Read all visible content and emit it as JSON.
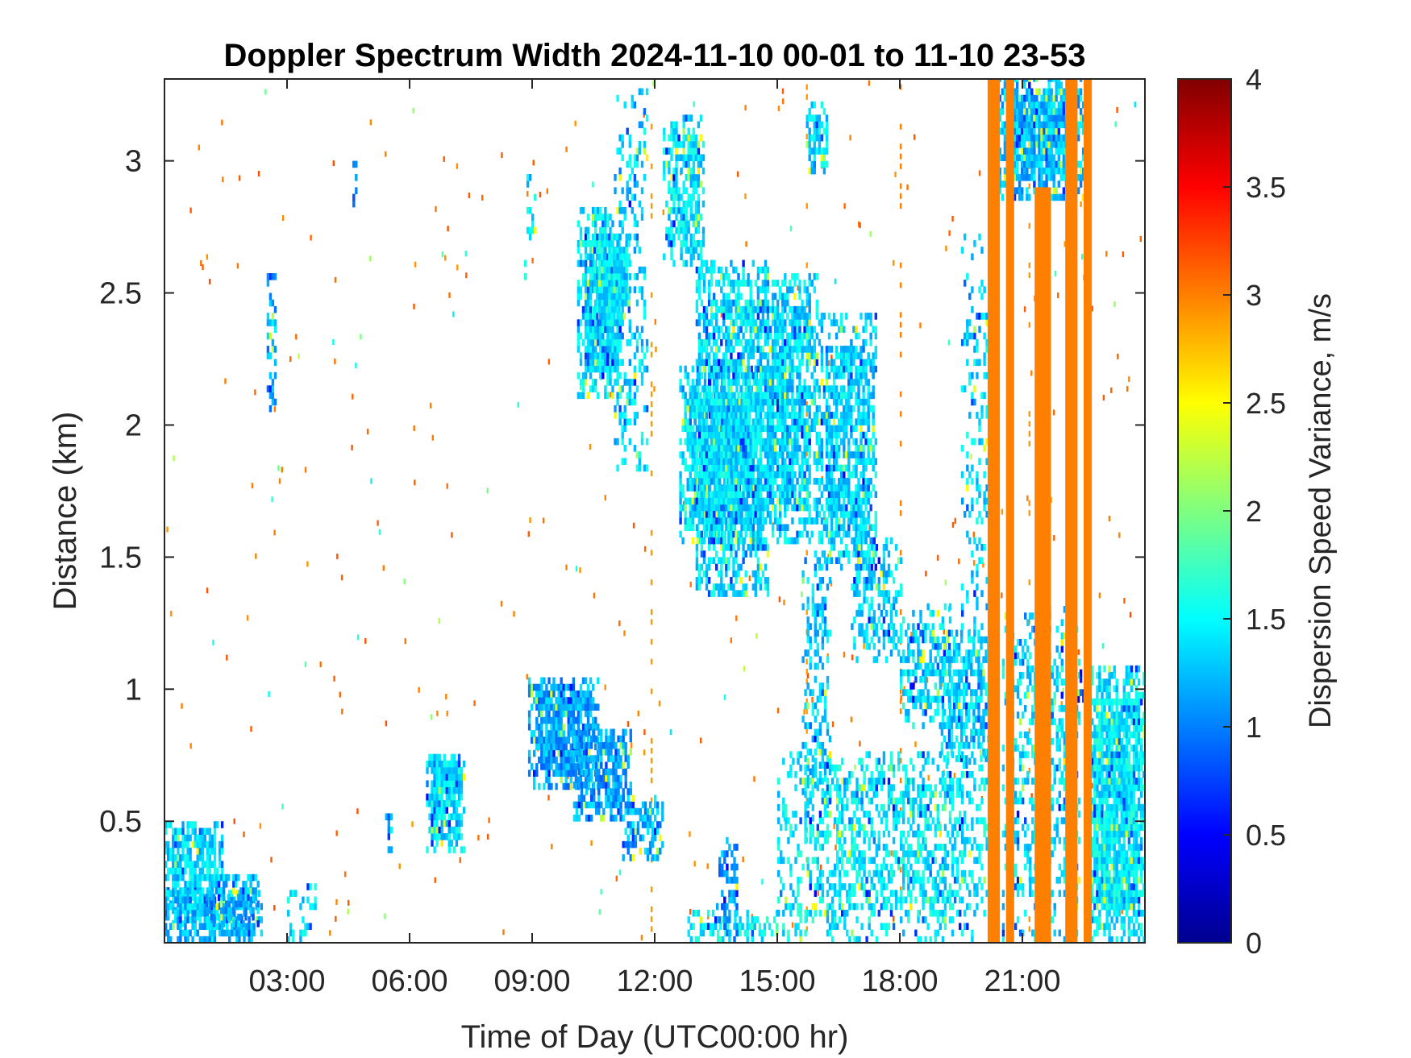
{
  "chart_data": {
    "type": "heatmap",
    "title": "Doppler Spectrum Width 2024-11-10 00-01 to 11-10 23-53",
    "xlabel": "Time of Day (UTC00:00 hr)",
    "ylabel": "Distance (km)",
    "xlim": [
      0.0,
      24.0
    ],
    "ylim": [
      0.04,
      3.31
    ],
    "x_tick_values": [
      3,
      6,
      9,
      12,
      15,
      18,
      21
    ],
    "x_tick_labels": [
      "03:00",
      "06:00",
      "09:00",
      "12:00",
      "15:00",
      "18:00",
      "21:00"
    ],
    "y_tick_values": [
      0.5,
      1,
      1.5,
      2,
      2.5,
      3
    ],
    "y_tick_labels": [
      "0.5",
      "1",
      "1.5",
      "2",
      "2.5",
      "3"
    ],
    "colorbar": {
      "label": "Dispersion Speed Variance, m/s",
      "colormap": "jet",
      "range": [
        0,
        4
      ],
      "tick_values": [
        0,
        0.5,
        1,
        1.5,
        2,
        2.5,
        3,
        3.5,
        4
      ],
      "tick_labels": [
        "0",
        "0.5",
        "1",
        "1.5",
        "2",
        "2.5",
        "3",
        "3.5",
        "4"
      ]
    },
    "grid": false,
    "background_color": "#ffffff",
    "regions": [
      {
        "t0": 0.0,
        "t1": 1.4,
        "h0": 0.1,
        "h1": 0.5,
        "value": 1.35,
        "density": 0.85
      },
      {
        "t0": 0.0,
        "t1": 2.4,
        "h0": 0.04,
        "h1": 0.22,
        "value": 1.25,
        "density": 0.7
      },
      {
        "t0": 1.0,
        "t1": 2.3,
        "h0": 0.1,
        "h1": 0.3,
        "value": 1.2,
        "density": 0.6
      },
      {
        "t0": 3.0,
        "t1": 3.7,
        "h0": 0.04,
        "h1": 0.25,
        "value": 1.4,
        "density": 0.35
      },
      {
        "t0": 2.5,
        "t1": 2.7,
        "h0": 2.05,
        "h1": 2.55,
        "value": 1.2,
        "density": 0.55
      },
      {
        "t0": 4.6,
        "t1": 4.7,
        "h0": 2.8,
        "h1": 3.0,
        "value": 1.0,
        "density": 0.7
      },
      {
        "t0": 6.4,
        "t1": 7.3,
        "h0": 0.38,
        "h1": 0.75,
        "value": 1.4,
        "density": 0.9
      },
      {
        "t0": 5.4,
        "t1": 5.6,
        "h0": 0.38,
        "h1": 0.55,
        "value": 1.3,
        "density": 0.5
      },
      {
        "t0": 8.8,
        "t1": 9.1,
        "h0": 2.55,
        "h1": 2.95,
        "value": 1.4,
        "density": 0.35
      },
      {
        "t0": 8.9,
        "t1": 10.6,
        "h0": 0.62,
        "h1": 1.03,
        "value": 1.15,
        "density": 0.85
      },
      {
        "t0": 10.0,
        "t1": 11.4,
        "h0": 0.5,
        "h1": 0.85,
        "value": 1.15,
        "density": 0.75
      },
      {
        "t0": 11.2,
        "t1": 12.2,
        "h0": 0.35,
        "h1": 0.6,
        "value": 1.2,
        "density": 0.6
      },
      {
        "t0": 10.1,
        "t1": 11.2,
        "h0": 2.1,
        "h1": 2.8,
        "value": 1.4,
        "density": 0.9
      },
      {
        "t0": 10.5,
        "t1": 11.4,
        "h0": 2.4,
        "h1": 2.7,
        "value": 1.45,
        "density": 0.95
      },
      {
        "t0": 11.0,
        "t1": 11.8,
        "h0": 1.8,
        "h1": 3.25,
        "value": 1.35,
        "density": 0.3
      },
      {
        "t0": 12.2,
        "t1": 13.2,
        "h0": 2.6,
        "h1": 3.15,
        "value": 1.4,
        "density": 0.7
      },
      {
        "t0": 12.6,
        "t1": 14.5,
        "h0": 1.55,
        "h1": 2.2,
        "value": 1.4,
        "density": 0.85
      },
      {
        "t0": 13.0,
        "t1": 14.8,
        "h0": 1.35,
        "h1": 2.6,
        "value": 1.4,
        "density": 0.75
      },
      {
        "t0": 14.5,
        "t1": 16.0,
        "h0": 1.55,
        "h1": 2.55,
        "value": 1.35,
        "density": 0.8
      },
      {
        "t0": 15.7,
        "t1": 16.2,
        "h0": 2.95,
        "h1": 3.2,
        "value": 1.4,
        "density": 0.75
      },
      {
        "t0": 16.0,
        "t1": 17.4,
        "h0": 1.45,
        "h1": 2.4,
        "value": 1.35,
        "density": 0.7
      },
      {
        "t0": 16.8,
        "t1": 18.0,
        "h0": 1.1,
        "h1": 1.55,
        "value": 1.35,
        "density": 0.5
      },
      {
        "t0": 15.6,
        "t1": 16.3,
        "h0": 0.5,
        "h1": 1.5,
        "value": 1.3,
        "density": 0.4
      },
      {
        "t0": 18.0,
        "t1": 19.2,
        "h0": 0.85,
        "h1": 1.3,
        "value": 1.4,
        "density": 0.55
      },
      {
        "t0": 19.0,
        "t1": 20.2,
        "h0": 0.7,
        "h1": 1.2,
        "value": 1.35,
        "density": 0.7
      },
      {
        "t0": 19.5,
        "t1": 20.2,
        "h0": 1.2,
        "h1": 2.7,
        "value": 1.35,
        "density": 0.25
      },
      {
        "t0": 12.8,
        "t1": 15.0,
        "h0": 0.04,
        "h1": 0.15,
        "value": 1.5,
        "density": 0.5
      },
      {
        "t0": 13.5,
        "t1": 14.0,
        "h0": 0.04,
        "h1": 0.45,
        "value": 1.1,
        "density": 0.4
      },
      {
        "t0": 15.0,
        "t1": 20.2,
        "h0": 0.04,
        "h1": 0.75,
        "value": 1.45,
        "density": 0.45
      },
      {
        "t0": 20.3,
        "t1": 22.6,
        "h0": 2.85,
        "h1": 3.31,
        "value": 1.25,
        "density": 0.9
      },
      {
        "t0": 20.5,
        "t1": 22.4,
        "h0": 0.04,
        "h1": 1.3,
        "value": 1.4,
        "density": 0.35
      },
      {
        "t0": 22.1,
        "t1": 22.5,
        "h0": 0.95,
        "h1": 1.05,
        "value": 0.6,
        "density": 0.8
      },
      {
        "t0": 22.5,
        "t1": 24.0,
        "h0": 0.04,
        "h1": 1.07,
        "value": 1.45,
        "density": 0.9
      }
    ],
    "saturated_bands": [
      {
        "t0": 20.15,
        "t1": 20.45,
        "h0": 0.04,
        "h1": 3.31,
        "value": 3.0
      },
      {
        "t0": 20.6,
        "t1": 20.8,
        "h0": 0.04,
        "h1": 3.31,
        "value": 3.0
      },
      {
        "t0": 21.3,
        "t1": 21.7,
        "h0": 0.04,
        "h1": 2.9,
        "value": 3.0
      },
      {
        "t0": 22.05,
        "t1": 22.35,
        "h0": 0.04,
        "h1": 3.31,
        "value": 3.0
      },
      {
        "t0": 22.5,
        "t1": 22.7,
        "h0": 0.04,
        "h1": 3.31,
        "value": 3.0
      }
    ],
    "sparse_lines": [
      {
        "t": 11.9,
        "value": 2.9
      },
      {
        "t": 15.7,
        "value": 2.9
      },
      {
        "t": 18.0,
        "value": 3.0
      },
      {
        "t": 21.15,
        "value": 2.9
      }
    ]
  }
}
